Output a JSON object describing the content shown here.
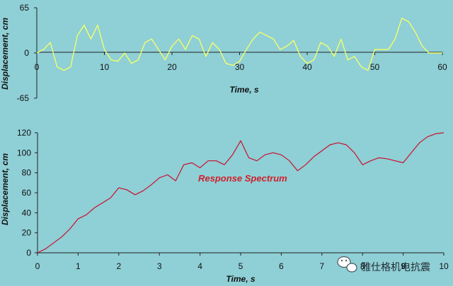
{
  "chart_data": [
    {
      "type": "line",
      "xlabel": "Time, s",
      "ylabel": "Displacement, cm",
      "xlim": [
        0,
        60
      ],
      "ylim": [
        -65,
        65
      ],
      "x_ticks": [
        "0",
        "10",
        "20",
        "30",
        "40",
        "50",
        "60"
      ],
      "y_ticks": [
        "65",
        "0",
        "-65"
      ],
      "grid": false,
      "color": "#f2ff6a",
      "series": [
        {
          "x": [
            0,
            1,
            2,
            3,
            4,
            5,
            6,
            7,
            8,
            9,
            10,
            11,
            12,
            13,
            14,
            15,
            16,
            17,
            18,
            19,
            20,
            21,
            22,
            23,
            24,
            25,
            26,
            27,
            28,
            29,
            30,
            31,
            32,
            33,
            34,
            35,
            36,
            37,
            38,
            39,
            40,
            41,
            42,
            43,
            44,
            45,
            46,
            47,
            48,
            49,
            50,
            51,
            52,
            53,
            54,
            55,
            56,
            57,
            58,
            59,
            60
          ],
          "y": [
            0,
            5,
            15,
            -20,
            -25,
            -20,
            25,
            40,
            20,
            40,
            5,
            -10,
            -12,
            0,
            -15,
            -10,
            15,
            20,
            5,
            -10,
            10,
            20,
            5,
            25,
            20,
            -5,
            15,
            5,
            -15,
            -18,
            -12,
            5,
            20,
            30,
            25,
            20,
            5,
            10,
            18,
            -5,
            -15,
            -10,
            15,
            10,
            -5,
            20,
            -10,
            -5,
            -20,
            -25,
            5,
            5,
            5,
            20,
            50,
            45,
            30,
            10,
            0,
            0,
            0
          ]
        }
      ]
    },
    {
      "type": "line",
      "xlabel": "Time, s",
      "ylabel": "Displacement, cm",
      "xlim": [
        0,
        10
      ],
      "ylim": [
        0,
        120
      ],
      "x_ticks": [
        "0",
        "1",
        "2",
        "3",
        "4",
        "5",
        "6",
        "7",
        "8",
        "9",
        "10"
      ],
      "y_ticks": [
        "0",
        "20",
        "40",
        "60",
        "80",
        "100",
        "120"
      ],
      "grid": false,
      "annotation": "Response Spectrum",
      "color": "#c8102e",
      "series": [
        {
          "x": [
            0,
            0.2,
            0.4,
            0.6,
            0.8,
            1.0,
            1.2,
            1.4,
            1.6,
            1.8,
            2.0,
            2.2,
            2.4,
            2.6,
            2.8,
            3.0,
            3.2,
            3.4,
            3.6,
            3.8,
            4.0,
            4.2,
            4.4,
            4.6,
            4.8,
            5.0,
            5.2,
            5.4,
            5.6,
            5.8,
            6.0,
            6.2,
            6.4,
            6.6,
            6.8,
            7.0,
            7.2,
            7.4,
            7.6,
            7.8,
            8.0,
            8.2,
            8.4,
            8.6,
            8.8,
            9.0,
            9.2,
            9.4,
            9.6,
            9.8,
            10.0
          ],
          "y": [
            0,
            4,
            10,
            16,
            24,
            34,
            38,
            45,
            50,
            55,
            65,
            63,
            58,
            62,
            68,
            75,
            78,
            72,
            88,
            90,
            85,
            92,
            92,
            88,
            98,
            112,
            95,
            92,
            98,
            100,
            98,
            92,
            82,
            88,
            96,
            102,
            108,
            110,
            108,
            100,
            88,
            92,
            95,
            94,
            92,
            90,
            100,
            110,
            116,
            119,
            120
          ]
        }
      ]
    }
  ],
  "watermark": {
    "text": "雅仕格机电抗震",
    "icon": "wechat-icon"
  }
}
